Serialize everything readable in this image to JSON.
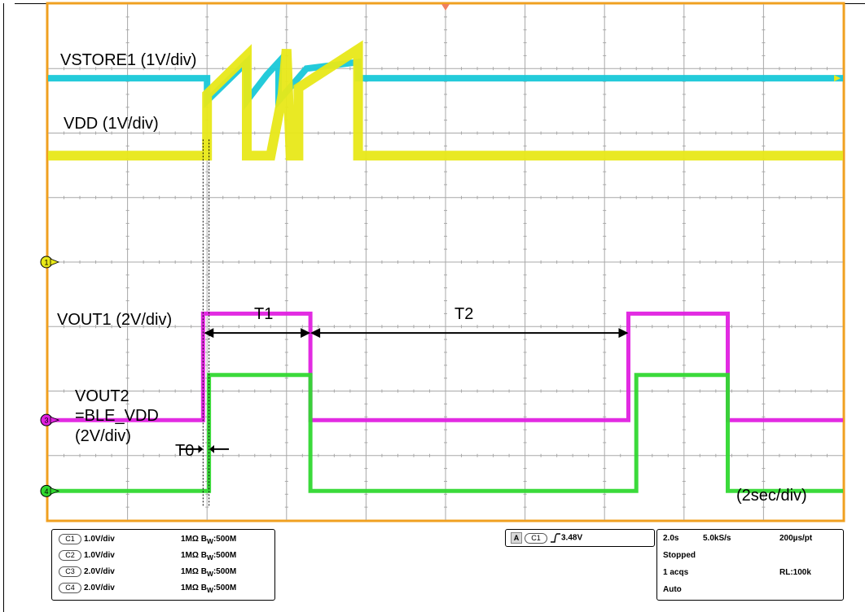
{
  "colors": {
    "frame": "#f0a020",
    "grid": "#a8a8a8",
    "ch1": "#18c8d8",
    "ch2": "#e8e818",
    "ch3": "#e020e0",
    "ch4": "#30d830"
  },
  "chart_data": {
    "type": "line",
    "xlim": [
      0,
      20
    ],
    "ylim": [
      0,
      8
    ],
    "x_unit": "s",
    "grid": true,
    "annotations": {
      "vstore1": "VSTORE1 (1V/div)",
      "vdd": "VDD (1V/div)",
      "vout1": "VOUT1 (2V/div)",
      "vout2_line1": "VOUT2",
      "vout2_line2": "=BLE_VDD",
      "vout2_line3": "(2V/div)",
      "t0": "T0",
      "t1": "T1",
      "t2": "T2",
      "timebase": "(2sec/div)"
    },
    "markers": {
      "trigger": "T",
      "ch1": "1",
      "ch3": "3",
      "ch4": "4"
    },
    "series": [
      {
        "name": "VSTORE1",
        "channel": "C1",
        "color": "#18c8d8",
        "x": [
          0,
          4,
          4.0,
          4.5,
          5.0,
          5.0,
          5.5,
          5.8,
          5.8,
          6.5,
          7.8,
          7.8,
          20
        ],
        "y": [
          6.85,
          6.85,
          6.5,
          6.8,
          7.1,
          6.5,
          6.9,
          7.1,
          6.5,
          7.0,
          7.1,
          6.85,
          6.85
        ]
      },
      {
        "name": "VDD",
        "channel": "C2",
        "color": "#e8e818",
        "x": [
          0,
          4.0,
          4.0,
          5.0,
          5.0,
          5.6,
          5.9,
          6.0,
          6.1,
          6.3,
          6.3,
          7.8,
          7.8,
          20
        ],
        "y": [
          5.65,
          5.65,
          6.6,
          7.2,
          5.65,
          5.65,
          6.6,
          7.3,
          5.65,
          5.65,
          6.7,
          7.3,
          5.65,
          5.65
        ]
      },
      {
        "name": "VOUT1",
        "channel": "C3",
        "color": "#e020e0",
        "x": [
          0,
          3.9,
          3.9,
          6.6,
          6.6,
          14.6,
          14.6,
          17.1,
          17.1,
          20
        ],
        "y": [
          1.55,
          1.55,
          3.2,
          3.2,
          1.55,
          1.55,
          3.2,
          3.2,
          1.55,
          1.55
        ]
      },
      {
        "name": "VOUT2",
        "channel": "C4",
        "color": "#30d830",
        "x": [
          0,
          4.05,
          4.05,
          6.6,
          6.6,
          14.8,
          14.8,
          17.1,
          17.1,
          20
        ],
        "y": [
          0.45,
          0.45,
          2.25,
          2.25,
          0.45,
          0.45,
          2.25,
          2.25,
          0.45,
          0.45
        ]
      }
    ]
  },
  "info": {
    "channels": [
      {
        "id": "C1",
        "scale": "1.0V/div",
        "impedance": "1MΩ",
        "bw_label": "B",
        "bw_sub": "W",
        "bw_value": ":500M"
      },
      {
        "id": "C2",
        "scale": "1.0V/div",
        "impedance": "1MΩ",
        "bw_label": "B",
        "bw_sub": "W",
        "bw_value": ":500M"
      },
      {
        "id": "C3",
        "scale": "2.0V/div",
        "impedance": "1MΩ",
        "bw_label": "B",
        "bw_sub": "W",
        "bw_value": ":500M"
      },
      {
        "id": "C4",
        "scale": "2.0V/div",
        "impedance": "1MΩ",
        "bw_label": "B",
        "bw_sub": "W",
        "bw_value": ":500M"
      }
    ],
    "trigger": {
      "mode_letter": "A",
      "channel": "C1",
      "slope_icon": "rising-edge-icon",
      "level": "3.48V"
    },
    "acquisition": {
      "timebase": "2.0s",
      "sample_rate": "5.0kS/s",
      "resolution": "200µs/pt",
      "state": "Stopped",
      "acqs": "1 acqs",
      "record_length": "RL:100k",
      "trigger_mode": "Auto"
    }
  }
}
